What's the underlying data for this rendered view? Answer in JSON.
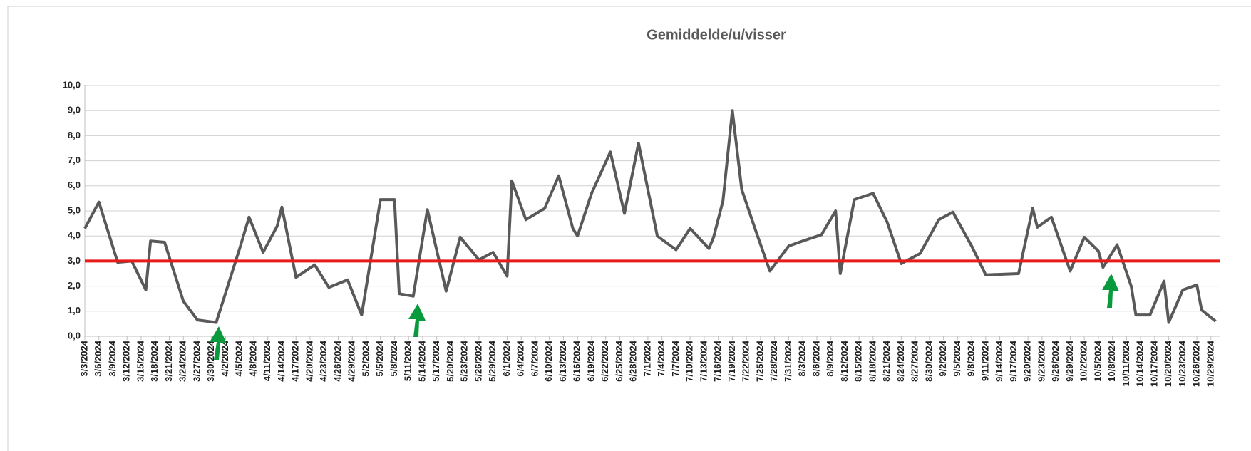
{
  "chart_data": {
    "type": "line",
    "title": "Gemiddelde/u/visser",
    "x": [
      "3/3/2024",
      "3/6/2024",
      "3/10/2024",
      "3/13/2024",
      "3/16/2024",
      "3/17/2024",
      "3/20/2024",
      "3/24/2024",
      "3/27/2024",
      "3/31/2024",
      "4/5/2024",
      "4/7/2024",
      "4/10/2024",
      "4/13/2024",
      "4/14/2024",
      "4/17/2024",
      "4/21/2024",
      "4/24/2024",
      "4/28/2024",
      "5/1/2024",
      "5/5/2024",
      "5/8/2024",
      "5/9/2024",
      "5/12/2024",
      "5/15/2024",
      "5/19/2024",
      "5/22/2024",
      "5/26/2024",
      "5/29/2024",
      "6/1/2024",
      "6/2/2024",
      "6/5/2024",
      "6/9/2024",
      "6/12/2024",
      "6/15/2024",
      "6/16/2024",
      "6/19/2024",
      "6/23/2024",
      "6/26/2024",
      "6/29/2024",
      "7/3/2024",
      "7/7/2024",
      "7/10/2024",
      "7/14/2024",
      "7/15/2024",
      "7/17/2024",
      "7/19/2024",
      "7/21/2024",
      "7/24/2024",
      "7/27/2024",
      "7/31/2024",
      "8/3/2024",
      "8/7/2024",
      "8/10/2024",
      "8/11/2024",
      "8/14/2024",
      "8/18/2024",
      "8/21/2024",
      "8/24/2024",
      "8/28/2024",
      "9/1/2024",
      "9/4/2024",
      "9/8/2024",
      "9/11/2024",
      "9/18/2024",
      "9/21/2024",
      "9/22/2024",
      "9/25/2024",
      "9/29/2024",
      "10/2/2024",
      "10/5/2024",
      "10/6/2024",
      "10/9/2024",
      "10/12/2024",
      "10/13/2024",
      "10/16/2024",
      "10/19/2024",
      "10/20/2024",
      "10/23/2024",
      "10/26/2024",
      "10/27/2024",
      "10/30/2024"
    ],
    "series": [
      {
        "color": "#595959",
        "values": [
          4.3,
          5.35,
          2.95,
          3.0,
          1.85,
          3.8,
          3.75,
          1.4,
          0.65,
          0.55,
          3.5,
          4.75,
          3.35,
          4.4,
          5.15,
          2.35,
          2.85,
          1.95,
          2.25,
          0.85,
          5.45,
          5.45,
          1.7,
          1.6,
          5.05,
          1.8,
          3.95,
          3.05,
          3.35,
          2.4,
          6.2,
          4.65,
          5.1,
          6.4,
          4.3,
          4.0,
          5.7,
          7.35,
          4.9,
          7.7,
          4.0,
          3.45,
          4.3,
          3.5,
          3.95,
          5.4,
          9.0,
          5.85,
          4.2,
          2.6,
          3.6,
          3.8,
          4.05,
          5.0,
          2.5,
          5.45,
          5.7,
          4.55,
          2.9,
          3.3,
          4.65,
          4.95,
          3.6,
          2.45,
          2.5,
          5.1,
          4.35,
          4.75,
          2.6,
          3.95,
          3.4,
          2.75,
          3.65,
          2.0,
          0.85,
          0.85,
          2.2,
          0.55,
          1.85,
          2.05,
          1.05,
          0.6
        ]
      }
    ],
    "reference_line": {
      "value": 3.0,
      "color": "#e81a1a"
    },
    "xlim": [
      "3/3/2024",
      "10/31/2024"
    ],
    "xticks": [
      "3/3/2024",
      "3/6/2024",
      "3/9/2024",
      "3/12/2024",
      "3/15/2024",
      "3/18/2024",
      "3/21/2024",
      "3/24/2024",
      "3/27/2024",
      "3/30/2024",
      "4/2/2024",
      "4/5/2024",
      "4/8/2024",
      "4/11/2024",
      "4/14/2024",
      "4/17/2024",
      "4/20/2024",
      "4/23/2024",
      "4/26/2024",
      "4/29/2024",
      "5/2/2024",
      "5/5/2024",
      "5/8/2024",
      "5/11/2024",
      "5/14/2024",
      "5/17/2024",
      "5/20/2024",
      "5/23/2024",
      "5/26/2024",
      "5/29/2024",
      "6/1/2024",
      "6/4/2024",
      "6/7/2024",
      "6/10/2024",
      "6/13/2024",
      "6/16/2024",
      "6/19/2024",
      "6/22/2024",
      "6/25/2024",
      "6/28/2024",
      "7/1/2024",
      "7/4/2024",
      "7/7/2024",
      "7/10/2024",
      "7/13/2024",
      "7/16/2024",
      "7/19/2024",
      "7/22/2024",
      "7/25/2024",
      "7/28/2024",
      "7/31/2024",
      "8/3/2024",
      "8/6/2024",
      "8/9/2024",
      "8/12/2024",
      "8/15/2024",
      "8/18/2024",
      "8/21/2024",
      "8/24/2024",
      "8/27/2024",
      "8/30/2024",
      "9/2/2024",
      "9/5/2024",
      "9/8/2024",
      "9/11/2024",
      "9/14/2024",
      "9/17/2024",
      "9/20/2024",
      "9/23/2024",
      "9/26/2024",
      "9/29/2024",
      "10/2/2024",
      "10/5/2024",
      "10/8/2024",
      "10/11/2024",
      "10/14/2024",
      "10/17/2024",
      "10/20/2024",
      "10/23/2024",
      "10/26/2024",
      "10/29/2024"
    ],
    "ylim": [
      0,
      10
    ],
    "yticks": [
      {
        "value": 0,
        "label": "0,0"
      },
      {
        "value": 1,
        "label": "1,0"
      },
      {
        "value": 2,
        "label": "2,0"
      },
      {
        "value": 3,
        "label": "3,0"
      },
      {
        "value": 4,
        "label": "4,0"
      },
      {
        "value": 5,
        "label": "5,0"
      },
      {
        "value": 6,
        "label": "6,0"
      },
      {
        "value": 7,
        "label": "7,0"
      },
      {
        "value": 8,
        "label": "8,0"
      },
      {
        "value": 9,
        "label": "9,0"
      },
      {
        "value": 10,
        "label": "10,0"
      }
    ],
    "grid": true
  }
}
